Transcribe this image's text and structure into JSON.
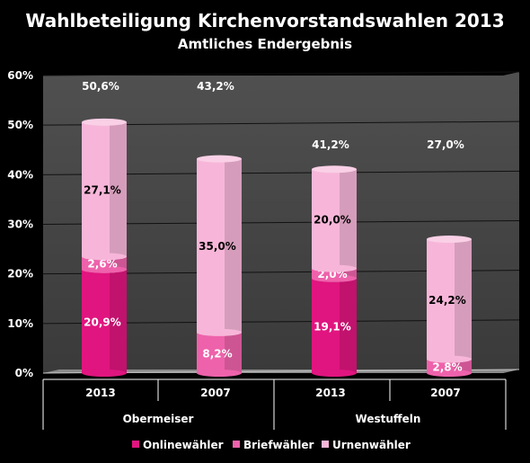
{
  "chart_data": {
    "type": "bar",
    "stacked": true,
    "title": "Wahlbeteiligung Kirchenvorstandswahlen 2013",
    "subtitle": "Amtliches Endergebnis",
    "ylim": [
      0,
      60
    ],
    "y_ticks": [
      "0%",
      "10%",
      "20%",
      "30%",
      "40%",
      "50%",
      "60%"
    ],
    "categories": [
      "2013",
      "2007",
      "2013",
      "2007"
    ],
    "groups": [
      "Obermeiser",
      "Westuffeln"
    ],
    "series": [
      {
        "name": "Onlinewähler",
        "values": [
          20.9,
          0,
          19.1,
          0
        ],
        "labels": [
          "20,9%",
          "",
          "19,1%",
          ""
        ],
        "color": "#e0157f"
      },
      {
        "name": "Briefwähler",
        "values": [
          2.6,
          8.2,
          2.0,
          2.8
        ],
        "labels": [
          "2,6%",
          "8,2%",
          "2,0%",
          "2,8%"
        ],
        "color": "#ee62ab"
      },
      {
        "name": "Urnenwähler",
        "values": [
          27.1,
          35.0,
          20.0,
          24.2
        ],
        "labels": [
          "27,1%",
          "35,0%",
          "20,0%",
          "24,2%"
        ],
        "color": "#f7b6d9"
      }
    ],
    "totals": [
      "50,6%",
      "43,2%",
      "41,2%",
      "27,0%"
    ],
    "grid": true,
    "legend": "bottom"
  }
}
